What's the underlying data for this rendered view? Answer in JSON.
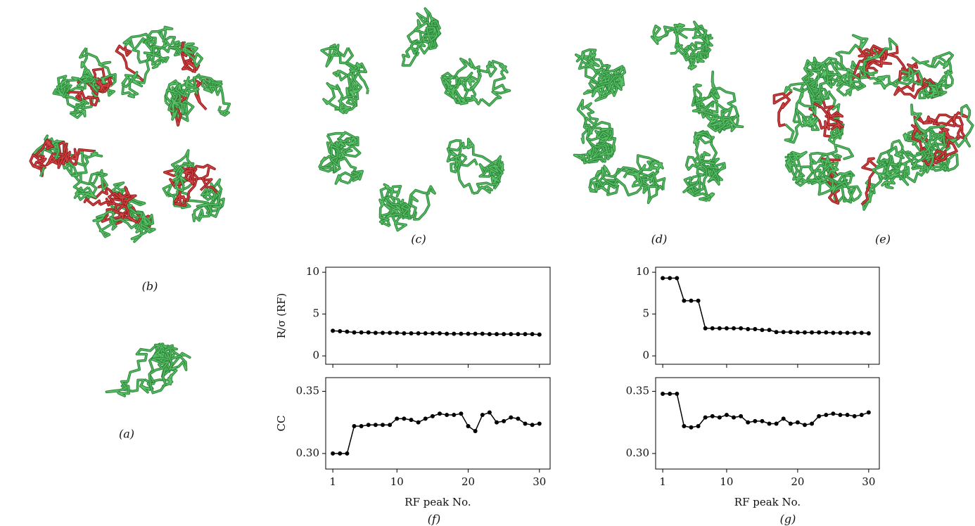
{
  "panel_labels": {
    "a": "(a)",
    "b": "(b)",
    "c": "(c)",
    "d": "(d)",
    "e": "(e)",
    "f": "(f)",
    "g": "(g)"
  },
  "chart_data": [
    {
      "type": "line",
      "ylabel": "R/σ (RF)",
      "xtick_labels": false,
      "x": [
        1,
        2,
        3,
        4,
        5,
        6,
        7,
        8,
        9,
        10,
        11,
        12,
        13,
        14,
        15,
        16,
        17,
        18,
        19,
        20,
        21,
        22,
        23,
        24,
        25,
        26,
        27,
        28,
        29,
        30
      ],
      "series": [
        {
          "color": "#000000",
          "values": [
            3.0,
            2.95,
            2.9,
            2.8,
            2.8,
            2.8,
            2.75,
            2.75,
            2.75,
            2.75,
            2.7,
            2.7,
            2.7,
            2.7,
            2.7,
            2.7,
            2.65,
            2.65,
            2.65,
            2.65,
            2.65,
            2.65,
            2.6,
            2.6,
            2.6,
            2.6,
            2.6,
            2.6,
            2.6,
            2.55
          ]
        }
      ],
      "xlim": [
        0,
        31.5
      ],
      "ylim": [
        -1,
        10.6
      ],
      "xticks": [
        1,
        10,
        20,
        30
      ],
      "yticks": [
        0,
        5,
        10
      ]
    },
    {
      "type": "line",
      "ylabel": "CC",
      "xlabel": "RF peak No.",
      "xtick_labels": true,
      "x": [
        1,
        2,
        3,
        4,
        5,
        6,
        7,
        8,
        9,
        10,
        11,
        12,
        13,
        14,
        15,
        16,
        17,
        18,
        19,
        20,
        21,
        22,
        23,
        24,
        25,
        26,
        27,
        28,
        29,
        30
      ],
      "series": [
        {
          "color": "#000000",
          "values": [
            0.3,
            0.3,
            0.3,
            0.322,
            0.322,
            0.323,
            0.323,
            0.323,
            0.323,
            0.328,
            0.328,
            0.327,
            0.325,
            0.328,
            0.33,
            0.332,
            0.331,
            0.331,
            0.332,
            0.322,
            0.318,
            0.331,
            0.333,
            0.325,
            0.326,
            0.329,
            0.328,
            0.324,
            0.323,
            0.324
          ]
        }
      ],
      "xlim": [
        0,
        31.5
      ],
      "ylim": [
        0.2875,
        0.361
      ],
      "xticks": [
        1,
        10,
        20,
        30
      ],
      "yticks": [
        {
          "value": 0.3,
          "label": "0.30"
        },
        0.35
      ]
    },
    {
      "type": "line",
      "xtick_labels": false,
      "x": [
        1,
        2,
        3,
        4,
        5,
        6,
        7,
        8,
        9,
        10,
        11,
        12,
        13,
        14,
        15,
        16,
        17,
        18,
        19,
        20,
        21,
        22,
        23,
        24,
        25,
        26,
        27,
        28,
        29,
        30
      ],
      "series": [
        {
          "color": "#000000",
          "values": [
            9.3,
            9.3,
            9.3,
            6.6,
            6.6,
            6.6,
            3.3,
            3.3,
            3.3,
            3.3,
            3.3,
            3.3,
            3.2,
            3.2,
            3.1,
            3.1,
            2.85,
            2.85,
            2.85,
            2.8,
            2.8,
            2.8,
            2.8,
            2.8,
            2.75,
            2.75,
            2.75,
            2.75,
            2.75,
            2.7
          ]
        }
      ],
      "xlim": [
        0,
        31.5
      ],
      "ylim": [
        -1,
        10.6
      ],
      "xticks": [
        1,
        10,
        20,
        30
      ],
      "yticks": [
        0,
        5,
        10
      ]
    },
    {
      "type": "line",
      "xlabel": "RF peak No.",
      "xtick_labels": true,
      "x": [
        1,
        2,
        3,
        4,
        5,
        6,
        7,
        8,
        9,
        10,
        11,
        12,
        13,
        14,
        15,
        16,
        17,
        18,
        19,
        20,
        21,
        22,
        23,
        24,
        25,
        26,
        27,
        28,
        29,
        30
      ],
      "series": [
        {
          "color": "#000000",
          "values": [
            0.348,
            0.348,
            0.348,
            0.322,
            0.321,
            0.322,
            0.329,
            0.33,
            0.329,
            0.331,
            0.329,
            0.33,
            0.325,
            0.326,
            0.326,
            0.324,
            0.324,
            0.328,
            0.324,
            0.325,
            0.323,
            0.324,
            0.33,
            0.331,
            0.332,
            0.331,
            0.331,
            0.33,
            0.331,
            0.333
          ]
        }
      ],
      "xlim": [
        0,
        31.5
      ],
      "ylim": [
        0.2875,
        0.361
      ],
      "xticks": [
        1,
        10,
        20,
        30
      ],
      "yticks": [
        {
          "value": 0.3,
          "label": "0.30"
        },
        0.35
      ]
    }
  ]
}
